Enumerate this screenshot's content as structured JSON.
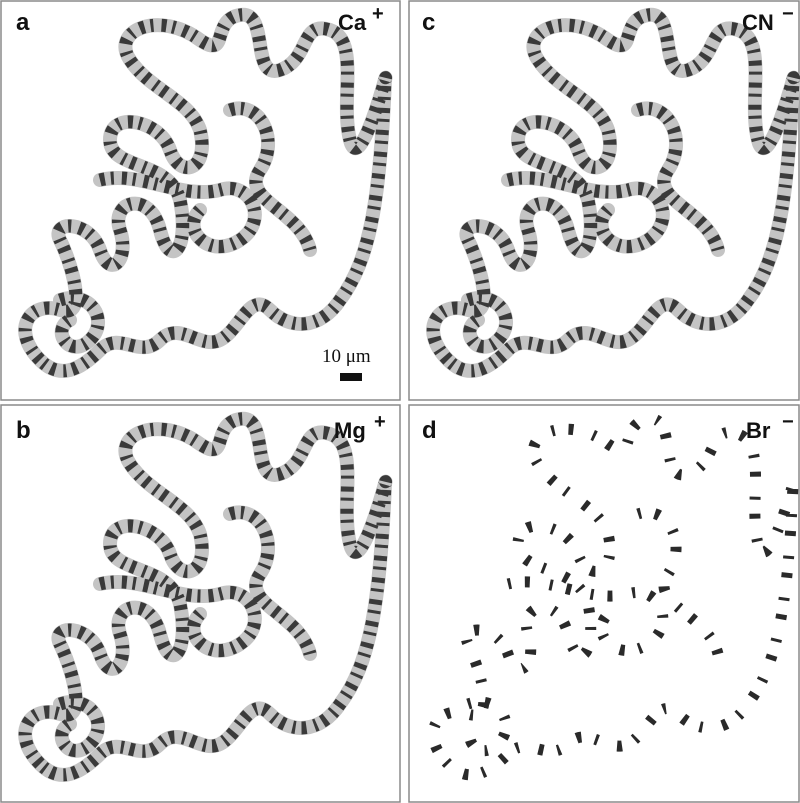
{
  "panels": [
    {
      "letter": "a",
      "ion": "Ca",
      "charge": "+"
    },
    {
      "letter": "b",
      "ion": "Mg",
      "charge": "+"
    },
    {
      "letter": "c",
      "ion": "CN",
      "charge": "−"
    },
    {
      "letter": "d",
      "ion": "Br",
      "charge": "−"
    }
  ],
  "scale_bar": "10 μm"
}
